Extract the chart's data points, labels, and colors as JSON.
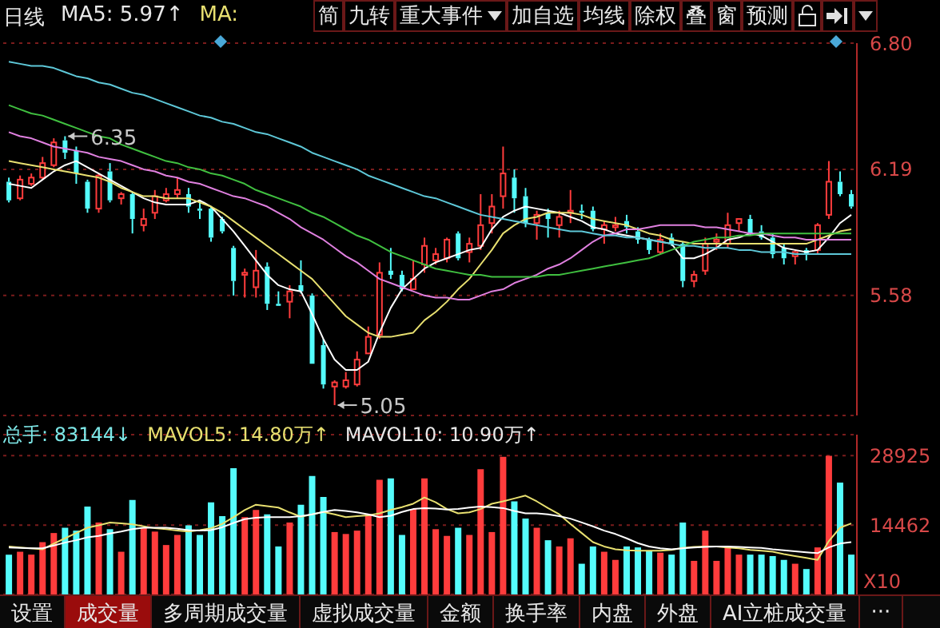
{
  "chart_data": [
    {
      "type": "candlestick",
      "categories": [
        null,
        null,
        null,
        null,
        null,
        null,
        null,
        null,
        null,
        null,
        null,
        null,
        null,
        null,
        null,
        null,
        null,
        null,
        null,
        null,
        null,
        null,
        null,
        null,
        null,
        null,
        null,
        null,
        null,
        null,
        null,
        null,
        null,
        null,
        null,
        null,
        null,
        null,
        null,
        null,
        null,
        null,
        null,
        null,
        null,
        null,
        null,
        null,
        null,
        null,
        null,
        null,
        null,
        null,
        null,
        null,
        null,
        null,
        null,
        null,
        null,
        null,
        null,
        null,
        null,
        null,
        null,
        null,
        null,
        null,
        null,
        null,
        null,
        null,
        null,
        null
      ],
      "ohlc": [
        [
          6.13,
          6.15,
          6.03,
          6.04
        ],
        [
          6.05,
          6.16,
          6.04,
          6.14
        ],
        [
          6.12,
          6.17,
          6.11,
          6.15
        ],
        [
          6.15,
          6.25,
          6.14,
          6.22
        ],
        [
          6.21,
          6.34,
          6.2,
          6.32
        ],
        [
          6.33,
          6.35,
          6.24,
          6.27
        ],
        [
          6.28,
          6.3,
          6.12,
          6.17
        ],
        [
          6.13,
          6.14,
          5.98,
          6.0
        ],
        [
          6.0,
          6.17,
          5.98,
          6.16
        ],
        [
          6.18,
          6.22,
          6.03,
          6.04
        ],
        [
          6.05,
          6.08,
          6.02,
          6.07
        ],
        [
          6.07,
          6.08,
          5.88,
          5.95
        ],
        [
          5.92,
          6.0,
          5.89,
          5.95
        ],
        [
          5.98,
          6.09,
          5.95,
          6.06
        ],
        [
          6.04,
          6.1,
          6.03,
          6.07
        ],
        [
          6.07,
          6.15,
          6.05,
          6.09
        ],
        [
          6.07,
          6.1,
          5.98,
          6.01
        ],
        [
          6.0,
          6.04,
          5.95,
          5.99
        ],
        [
          6.0,
          6.01,
          5.84,
          5.86
        ],
        [
          5.95,
          5.96,
          5.88,
          5.89
        ],
        [
          5.81,
          5.82,
          5.58,
          5.65
        ],
        [
          5.68,
          5.71,
          5.57,
          5.69
        ],
        [
          5.62,
          5.8,
          5.57,
          5.7
        ],
        [
          5.72,
          5.74,
          5.51,
          5.54
        ],
        [
          5.54,
          5.6,
          5.53,
          5.53
        ],
        [
          5.55,
          5.63,
          5.47,
          5.6
        ],
        [
          5.63,
          5.75,
          5.59,
          5.6
        ],
        [
          5.58,
          5.59,
          5.25,
          5.25
        ],
        [
          5.34,
          5.37,
          5.13,
          5.15
        ],
        [
          5.14,
          5.17,
          5.05,
          5.16
        ],
        [
          5.14,
          5.21,
          5.13,
          5.17
        ],
        [
          5.15,
          5.31,
          5.14,
          5.27
        ],
        [
          5.3,
          5.43,
          5.3,
          5.38
        ],
        [
          5.39,
          5.74,
          5.37,
          5.69
        ],
        [
          5.7,
          5.81,
          5.66,
          5.68
        ],
        [
          5.68,
          5.7,
          5.6,
          5.61
        ],
        [
          5.61,
          5.75,
          5.61,
          5.66
        ],
        [
          5.73,
          5.86,
          5.69,
          5.82
        ],
        [
          5.75,
          5.81,
          5.73,
          5.78
        ],
        [
          5.76,
          5.86,
          5.74,
          5.85
        ],
        [
          5.88,
          5.89,
          5.75,
          5.76
        ],
        [
          5.79,
          5.86,
          5.74,
          5.83
        ],
        [
          5.82,
          6.07,
          5.8,
          5.92
        ],
        [
          5.93,
          6.07,
          5.88,
          6.01
        ],
        [
          6.06,
          6.3,
          6.0,
          6.17
        ],
        [
          6.15,
          6.19,
          5.98,
          6.05
        ],
        [
          6.06,
          6.1,
          5.91,
          5.93
        ],
        [
          5.93,
          5.99,
          5.85,
          5.97
        ],
        [
          5.98,
          6.0,
          5.86,
          5.95
        ],
        [
          5.92,
          5.99,
          5.86,
          5.96
        ],
        [
          5.98,
          6.09,
          5.93,
          5.99
        ],
        [
          5.99,
          6.02,
          5.95,
          5.98
        ],
        [
          5.99,
          6.01,
          5.89,
          5.9
        ],
        [
          5.9,
          5.94,
          5.83,
          5.92
        ],
        [
          5.91,
          5.96,
          5.89,
          5.92
        ],
        [
          5.94,
          5.97,
          5.88,
          5.91
        ],
        [
          5.89,
          5.91,
          5.83,
          5.85
        ],
        [
          5.85,
          5.86,
          5.78,
          5.8
        ],
        [
          5.79,
          5.88,
          5.78,
          5.85
        ],
        [
          5.86,
          5.88,
          5.82,
          5.83
        ],
        [
          5.83,
          5.84,
          5.62,
          5.65
        ],
        [
          5.65,
          5.7,
          5.62,
          5.68
        ],
        [
          5.7,
          5.86,
          5.68,
          5.83
        ],
        [
          5.84,
          5.88,
          5.8,
          5.85
        ],
        [
          5.83,
          5.98,
          5.81,
          5.92
        ],
        [
          5.93,
          5.95,
          5.89,
          5.95
        ],
        [
          5.95,
          5.97,
          5.87,
          5.88
        ],
        [
          5.89,
          5.92,
          5.85,
          5.86
        ],
        [
          5.86,
          5.88,
          5.76,
          5.78
        ],
        [
          5.81,
          5.83,
          5.73,
          5.76
        ],
        [
          5.77,
          5.8,
          5.73,
          5.79
        ],
        [
          5.8,
          5.81,
          5.75,
          5.78
        ],
        [
          5.8,
          5.93,
          5.78,
          5.92
        ],
        [
          5.97,
          6.23,
          5.95,
          6.13
        ],
        [
          6.13,
          6.18,
          6.06,
          6.07
        ],
        [
          6.07,
          6.09,
          6.0,
          6.01
        ]
      ],
      "colors": [
        "#54fcfc",
        "#ff3c3c",
        "#ff3c3c",
        "#ff3c3c",
        "#ff3c3c",
        "#54fcfc",
        "#54fcfc",
        "#54fcfc",
        "#ff3c3c",
        "#54fcfc",
        "#ff3c3c",
        "#54fcfc",
        "#ff3c3c",
        "#ff3c3c",
        "#ff3c3c",
        "#ff3c3c",
        "#54fcfc",
        "#54fcfc",
        "#54fcfc",
        "#54fcfc",
        "#54fcfc",
        "#ff3c3c",
        "#ff3c3c",
        "#54fcfc",
        "#54fcfc",
        "#ff3c3c",
        "#54fcfc",
        "#54fcfc",
        "#54fcfc",
        "#ff3c3c",
        "#ff3c3c",
        "#ff3c3c",
        "#ff3c3c",
        "#ff3c3c",
        "#54fcfc",
        "#54fcfc",
        "#ff3c3c",
        "#ff3c3c",
        "#ff3c3c",
        "#ff3c3c",
        "#54fcfc",
        "#ff3c3c",
        "#ff3c3c",
        "#ff3c3c",
        "#ff3c3c",
        "#54fcfc",
        "#54fcfc",
        "#ff3c3c",
        "#54fcfc",
        "#ff3c3c",
        "#ff3c3c",
        "#54fcfc",
        "#54fcfc",
        "#ff3c3c",
        "#ff3c3c",
        "#54fcfc",
        "#54fcfc",
        "#54fcfc",
        "#ff3c3c",
        "#54fcfc",
        "#54fcfc",
        "#ff3c3c",
        "#ff3c3c",
        "#ff3c3c",
        "#ff3c3c",
        "#ff3c3c",
        "#54fcfc",
        "#54fcfc",
        "#54fcfc",
        "#54fcfc",
        "#ff3c3c",
        "#54fcfc",
        "#ff3c3c",
        "#ff3c3c",
        "#54fcfc",
        "#54fcfc"
      ],
      "series": [
        {
          "type": "line",
          "color": "#ffffff",
          "values": [
            6.12,
            6.11,
            6.1,
            6.14,
            6.18,
            6.21,
            6.23,
            6.2,
            6.17,
            6.14,
            6.11,
            6.08,
            6.05,
            6.03,
            6.02,
            6.02,
            6.02,
            6.04,
            6.01,
            5.95,
            5.89,
            5.82,
            5.75,
            5.68,
            5.63,
            5.61,
            5.6,
            5.49,
            5.37,
            5.27,
            5.22,
            5.22,
            5.26,
            5.4,
            5.52,
            5.61,
            5.66,
            5.71,
            5.74,
            5.76,
            5.78,
            5.8,
            5.81,
            5.9,
            5.96,
            5.99,
            6.01,
            6.0,
            5.99,
            5.98,
            5.96,
            5.94,
            5.91,
            5.9,
            5.88,
            5.87,
            5.86,
            5.85,
            5.84,
            5.83,
            5.76,
            5.76,
            5.78,
            5.81,
            5.85,
            5.86,
            5.88,
            5.87,
            5.84,
            5.81,
            5.8,
            5.79,
            5.8,
            5.86,
            5.93,
            5.97
          ]
        },
        {
          "type": "line",
          "color": "#e8e070",
          "values": [
            6.23,
            6.22,
            6.21,
            6.2,
            6.19,
            6.18,
            6.17,
            6.16,
            6.15,
            6.13,
            6.1,
            6.08,
            6.06,
            6.06,
            6.05,
            6.05,
            6.05,
            6.03,
            6.01,
            5.98,
            5.94,
            5.9,
            5.86,
            5.82,
            5.78,
            5.74,
            5.7,
            5.66,
            5.6,
            5.54,
            5.48,
            5.44,
            5.4,
            5.38,
            5.38,
            5.39,
            5.4,
            5.46,
            5.5,
            5.55,
            5.61,
            5.66,
            5.73,
            5.8,
            5.88,
            5.92,
            5.95,
            5.96,
            5.98,
            5.98,
            5.98,
            5.97,
            5.95,
            5.94,
            5.93,
            5.92,
            5.9,
            5.88,
            5.87,
            5.85,
            5.84,
            5.83,
            5.83,
            5.83,
            5.83,
            5.83,
            5.83,
            5.83,
            5.83,
            5.83,
            5.83,
            5.83,
            5.85,
            5.87,
            5.89,
            5.9
          ]
        },
        {
          "type": "line",
          "color": "#e080e0",
          "values": [
            6.37,
            6.35,
            6.34,
            6.32,
            6.3,
            6.29,
            6.28,
            6.27,
            6.25,
            6.24,
            6.23,
            6.21,
            6.19,
            6.18,
            6.16,
            6.15,
            6.13,
            6.12,
            6.1,
            6.08,
            6.06,
            6.05,
            6.03,
            6.01,
            5.98,
            5.95,
            5.91,
            5.88,
            5.85,
            5.81,
            5.77,
            5.74,
            5.7,
            5.66,
            5.64,
            5.62,
            5.6,
            5.58,
            5.57,
            5.57,
            5.56,
            5.56,
            5.58,
            5.6,
            5.61,
            5.64,
            5.66,
            5.68,
            5.71,
            5.73,
            5.76,
            5.8,
            5.84,
            5.87,
            5.88,
            5.9,
            5.9,
            5.91,
            5.92,
            5.92,
            5.92,
            5.92,
            5.91,
            5.91,
            5.9,
            5.89,
            5.88,
            5.88,
            5.87,
            5.86,
            5.86,
            5.85,
            5.85,
            5.85,
            5.85,
            5.85
          ]
        },
        {
          "type": "line",
          "color": "#40c040",
          "values": [
            6.5,
            6.48,
            6.46,
            6.45,
            6.43,
            6.41,
            6.39,
            6.37,
            6.35,
            6.34,
            6.31,
            6.29,
            6.27,
            6.25,
            6.23,
            6.22,
            6.2,
            6.19,
            6.17,
            6.16,
            6.14,
            6.12,
            6.09,
            6.07,
            6.05,
            6.03,
            6.01,
            5.98,
            5.96,
            5.93,
            5.9,
            5.87,
            5.85,
            5.82,
            5.79,
            5.77,
            5.75,
            5.73,
            5.71,
            5.7,
            5.69,
            5.68,
            5.68,
            5.67,
            5.67,
            5.67,
            5.67,
            5.67,
            5.68,
            5.68,
            5.69,
            5.7,
            5.71,
            5.72,
            5.73,
            5.74,
            5.75,
            5.76,
            5.78,
            5.8,
            5.82,
            5.84,
            5.85,
            5.86,
            5.86,
            5.87,
            5.87,
            5.88,
            5.88,
            5.88,
            5.88,
            5.88,
            5.88,
            5.88,
            5.88,
            5.88
          ]
        },
        {
          "type": "line",
          "color": "#5ec8d8",
          "values": [
            6.71,
            6.7,
            6.69,
            6.69,
            6.68,
            6.66,
            6.64,
            6.63,
            6.61,
            6.6,
            6.58,
            6.56,
            6.55,
            6.53,
            6.51,
            6.49,
            6.47,
            6.45,
            6.44,
            6.42,
            6.41,
            6.39,
            6.37,
            6.36,
            6.34,
            6.32,
            6.3,
            6.27,
            6.25,
            6.23,
            6.21,
            6.19,
            6.16,
            6.14,
            6.12,
            6.1,
            6.08,
            6.06,
            6.05,
            6.03,
            6.01,
            5.99,
            5.97,
            5.96,
            5.95,
            5.94,
            5.93,
            5.92,
            5.91,
            5.9,
            5.89,
            5.89,
            5.88,
            5.87,
            5.87,
            5.86,
            5.86,
            5.85,
            5.84,
            5.83,
            5.82,
            5.82,
            5.81,
            5.81,
            5.81,
            5.8,
            5.8,
            5.79,
            5.79,
            5.79,
            5.78,
            5.78,
            5.78,
            5.78,
            5.78,
            5.78
          ]
        }
      ],
      "ylim": [
        5.0,
        6.8
      ],
      "yticks": [
        5.58,
        6.19,
        {
          "value": 6.8,
          "label": "6.80"
        }
      ],
      "grid": "y",
      "marker": "none",
      "tick_labels": "y",
      "annotations": [
        "日线",
        "MA5: 5.97↑",
        "MA:",
        "简",
        "九转",
        "重大事件",
        "加自选",
        "均线",
        "除权",
        "叠",
        "窗",
        "预测",
        "6.35",
        "5.05"
      ]
    },
    {
      "type": "bar",
      "categories": [
        null,
        null,
        null,
        null,
        null,
        null,
        null,
        null,
        null,
        null,
        null,
        null,
        null,
        null,
        null,
        null,
        null,
        null,
        null,
        null,
        null,
        null,
        null,
        null,
        null,
        null,
        null,
        null,
        null,
        null,
        null,
        null,
        null,
        null,
        null,
        null,
        null,
        null,
        null,
        null,
        null,
        null,
        null,
        null,
        null,
        null,
        null,
        null,
        null,
        null,
        null,
        null,
        null,
        null,
        null,
        null,
        null,
        null,
        null,
        null,
        null,
        null,
        null,
        null,
        null,
        null,
        null,
        null,
        null,
        null,
        null,
        null,
        null,
        null,
        null,
        null
      ],
      "values": [
        8300,
        8900,
        8300,
        10900,
        12800,
        13900,
        13300,
        18300,
        15000,
        13600,
        8900,
        19700,
        13900,
        13100,
        10300,
        12400,
        14400,
        12400,
        19200,
        16300,
        26300,
        16100,
        17600,
        16700,
        10000,
        15000,
        18700,
        24700,
        20300,
        13000,
        12600,
        13300,
        16700,
        23900,
        24200,
        12400,
        17800,
        24200,
        13600,
        12200,
        13900,
        12400,
        26100,
        13000,
        28700,
        19400,
        15800,
        13900,
        11300,
        10000,
        11700,
        6400,
        10000,
        8900,
        7200,
        10000,
        9800,
        9100,
        8700,
        8300,
        15000,
        7000,
        13300,
        7000,
        9800,
        8300,
        8300,
        8300,
        8000,
        7200,
        6400,
        5300,
        9800,
        28900,
        23300,
        8300
      ],
      "colors": [
        "#54fcfc",
        "#ff3c3c",
        "#ff3c3c",
        "#ff3c3c",
        "#ff3c3c",
        "#54fcfc",
        "#54fcfc",
        "#54fcfc",
        "#ff3c3c",
        "#54fcfc",
        "#ff3c3c",
        "#54fcfc",
        "#ff3c3c",
        "#ff3c3c",
        "#ff3c3c",
        "#ff3c3c",
        "#54fcfc",
        "#54fcfc",
        "#54fcfc",
        "#54fcfc",
        "#54fcfc",
        "#ff3c3c",
        "#ff3c3c",
        "#54fcfc",
        "#54fcfc",
        "#ff3c3c",
        "#54fcfc",
        "#54fcfc",
        "#54fcfc",
        "#ff3c3c",
        "#ff3c3c",
        "#ff3c3c",
        "#ff3c3c",
        "#ff3c3c",
        "#54fcfc",
        "#54fcfc",
        "#ff3c3c",
        "#ff3c3c",
        "#ff3c3c",
        "#ff3c3c",
        "#54fcfc",
        "#ff3c3c",
        "#ff3c3c",
        "#ff3c3c",
        "#ff3c3c",
        "#54fcfc",
        "#54fcfc",
        "#ff3c3c",
        "#54fcfc",
        "#ff3c3c",
        "#ff3c3c",
        "#54fcfc",
        "#54fcfc",
        "#ff3c3c",
        "#ff3c3c",
        "#54fcfc",
        "#54fcfc",
        "#54fcfc",
        "#ff3c3c",
        "#54fcfc",
        "#54fcfc",
        "#ff3c3c",
        "#ff3c3c",
        "#ff3c3c",
        "#ff3c3c",
        "#ff3c3c",
        "#54fcfc",
        "#54fcfc",
        "#54fcfc",
        "#54fcfc",
        "#ff3c3c",
        "#54fcfc",
        "#ff3c3c",
        "#ff3c3c",
        "#54fcfc",
        "#54fcfc"
      ],
      "series": [
        {
          "type": "line",
          "color": "#e8e070",
          "values": [
            10000,
            9800,
            9600,
            9400,
            10600,
            11700,
            12800,
            13900,
            14400,
            15000,
            14800,
            14600,
            14200,
            13800,
            13600,
            13300,
            13100,
            13400,
            13800,
            14700,
            16100,
            17600,
            18700,
            18400,
            18100,
            17100,
            16200,
            16700,
            17200,
            16700,
            16100,
            16300,
            16500,
            16900,
            17600,
            18200,
            18900,
            20200,
            19200,
            17800,
            16900,
            17100,
            17800,
            18900,
            19400,
            20000,
            20600,
            19400,
            18000,
            16700,
            14700,
            12800,
            10900,
            10000,
            9400,
            9200,
            9100,
            9100,
            9100,
            9300,
            9700,
            9900,
            10000,
            10000,
            9800,
            9600,
            9300,
            9100,
            8900,
            8400,
            8000,
            7600,
            7200,
            11100,
            13900,
            14800
          ]
        },
        {
          "type": "line",
          "color": "#ffffff",
          "values": [
            9800,
            9700,
            9600,
            9600,
            10200,
            10800,
            11300,
            11900,
            12200,
            12700,
            13100,
            13600,
            13900,
            13900,
            13900,
            13700,
            13400,
            13300,
            13400,
            14000,
            14900,
            15700,
            16000,
            16100,
            16100,
            16100,
            16300,
            16700,
            17200,
            17600,
            17400,
            17100,
            16700,
            16100,
            16400,
            17200,
            17800,
            18000,
            17900,
            17700,
            17800,
            18100,
            18300,
            18200,
            18000,
            17400,
            16900,
            16900,
            16700,
            16300,
            15800,
            15000,
            14200,
            13300,
            12600,
            11700,
            10700,
            10000,
            9600,
            9400,
            9600,
            9800,
            9900,
            10000,
            10000,
            9900,
            9800,
            9700,
            9400,
            9200,
            9000,
            8800,
            8600,
            9800,
            10600,
            10900
          ]
        }
      ],
      "ylim": [
        0,
        33300
      ],
      "yticks": [
        14462,
        28925
      ],
      "ylabel": "X10",
      "grid": "y",
      "marker": "none",
      "tick_labels": "y",
      "annotations": [
        "总手: 83144↓",
        "MAVOL5: 14.80万↑",
        "MAVOL10: 10.90万↑",
        "设置",
        "成交量",
        "多周期成交量",
        "虚拟成交量",
        "金额",
        "换手率",
        "内盘",
        "外盘",
        "AI立桩成交量",
        "···"
      ]
    }
  ]
}
